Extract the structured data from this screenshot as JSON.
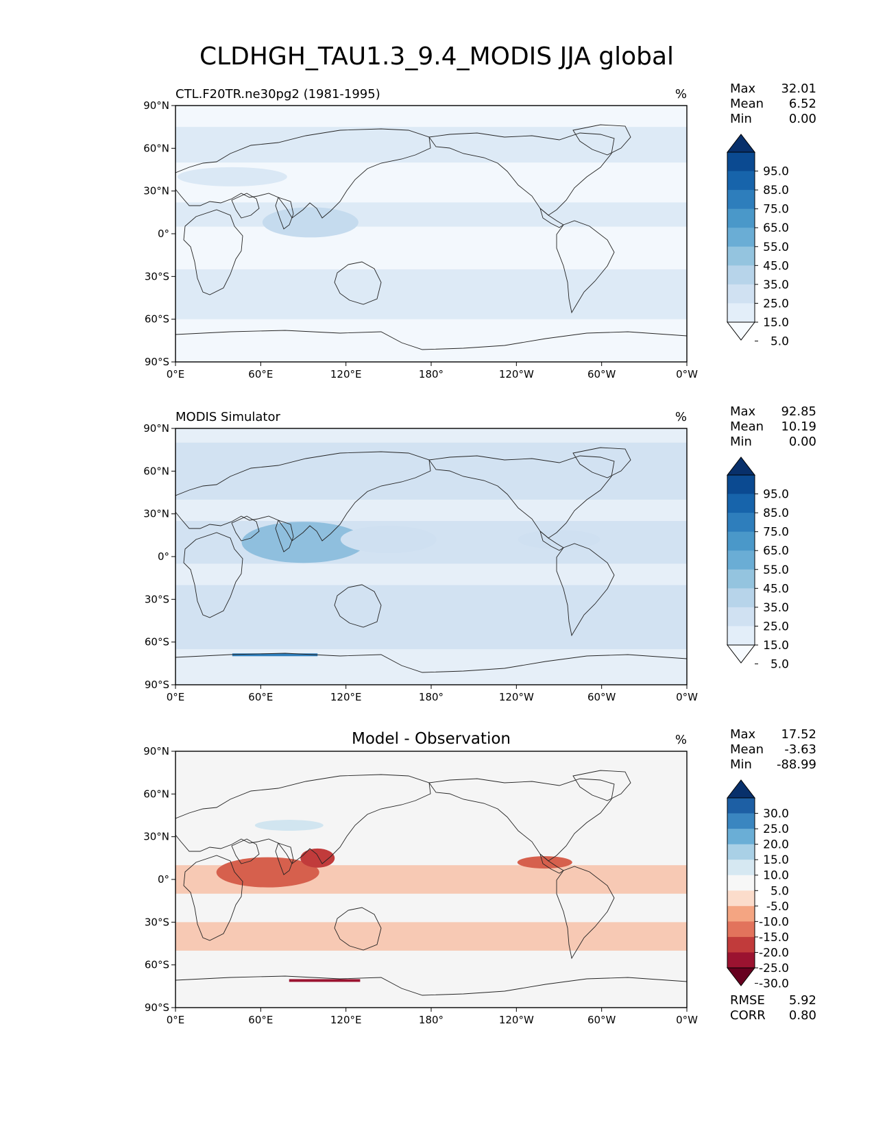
{
  "figure": {
    "title": "CLDHGH_TAU1.3_9.4_MODIS JJA global"
  },
  "chart_data": [
    {
      "type": "heatmap",
      "name": "test",
      "left_title": "CTL.F20TR.ne30pg2 (1981-1995)",
      "center_title": "",
      "units": "%",
      "stats": {
        "labels": [
          "Max",
          "Mean",
          "Min"
        ],
        "values": [
          "32.01",
          "6.52",
          "0.00"
        ]
      },
      "colorbar": {
        "levels": [
          "95.0",
          "85.0",
          "75.0",
          "65.0",
          "55.0",
          "45.0",
          "35.0",
          "25.0",
          "15.0",
          "5.0"
        ],
        "colors": [
          "#08306b",
          "#0b4a91",
          "#1764ab",
          "#2e7ebc",
          "#4a98c9",
          "#6aadd5",
          "#94c4df",
          "#b7d4ea",
          "#d0e1f2",
          "#e3eef9",
          "#f7fbff"
        ]
      },
      "xticks": [
        "0°E",
        "60°E",
        "120°E",
        "180°",
        "120°W",
        "60°W",
        "0°W"
      ],
      "yticks": [
        "90°N",
        "60°N",
        "30°N",
        "0°",
        "30°S",
        "60°S",
        "90°S"
      ],
      "field_summary": {
        "background": "#f3f8fd",
        "bands": "#dae8f5",
        "max_region": "#c5dbee"
      }
    },
    {
      "type": "heatmap",
      "name": "reference",
      "left_title": "MODIS Simulator",
      "center_title": "",
      "units": "%",
      "stats": {
        "labels": [
          "Max",
          "Mean",
          "Min"
        ],
        "values": [
          "92.85",
          "10.19",
          "0.00"
        ]
      },
      "colorbar": {
        "levels": [
          "95.0",
          "85.0",
          "75.0",
          "65.0",
          "55.0",
          "45.0",
          "35.0",
          "25.0",
          "15.0",
          "5.0"
        ],
        "colors": [
          "#08306b",
          "#0b4a91",
          "#1764ab",
          "#2e7ebc",
          "#4a98c9",
          "#6aadd5",
          "#94c4df",
          "#b7d4ea",
          "#d0e1f2",
          "#e3eef9",
          "#f7fbff"
        ]
      },
      "xticks": [
        "0°E",
        "60°E",
        "120°E",
        "180°",
        "120°W",
        "60°W",
        "0°W"
      ],
      "yticks": [
        "90°N",
        "60°N",
        "30°N",
        "0°",
        "30°S",
        "60°S",
        "90°S"
      ],
      "field_summary": {
        "background": "#e6eff8",
        "bands": "#cfe0f1",
        "max_region": "#8fbfde"
      }
    },
    {
      "type": "heatmap",
      "name": "difference",
      "left_title": "",
      "center_title": "Model - Observation",
      "units": "%",
      "stats": {
        "labels": [
          "Max",
          "Mean",
          "Min"
        ],
        "values": [
          "17.52",
          "-3.63",
          "-88.99"
        ]
      },
      "colorbar": {
        "levels": [
          "30.0",
          "25.0",
          "20.0",
          "15.0",
          "10.0",
          "5.0",
          "-5.0",
          "-10.0",
          "-15.0",
          "-20.0",
          "-25.0",
          "-30.0"
        ],
        "colors": [
          "#08306b",
          "#1d5fa4",
          "#3a86c0",
          "#6aaed6",
          "#a9d0e6",
          "#d6e8f2",
          "#f7f7f7",
          "#fbdccb",
          "#f4a582",
          "#e2735c",
          "#c13b3b",
          "#9b1330",
          "#67001f"
        ]
      },
      "metrics": {
        "labels": [
          "RMSE",
          "CORR"
        ],
        "values": [
          "5.92",
          "0.80"
        ]
      },
      "xticks": [
        "0°E",
        "60°E",
        "120°E",
        "180°",
        "120°W",
        "60°W",
        "0°W"
      ],
      "yticks": [
        "90°N",
        "60°N",
        "30°N",
        "0°",
        "30°S",
        "60°S",
        "90°S"
      ],
      "field_summary": {
        "background": "#f5f5f5",
        "negative": "#f7c4ad",
        "strong_negative": "#d6604d",
        "positive": "#d1e5f0"
      }
    }
  ]
}
